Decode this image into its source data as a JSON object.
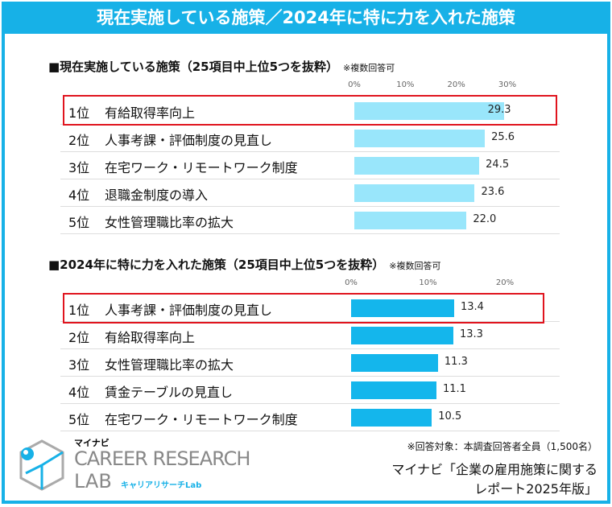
{
  "title": "現在実施している施策／2024年に特に力を入れた施策",
  "chart_data": [
    {
      "type": "bar",
      "title": "■現在実施している施策（25項目中上位5つを抜粋）",
      "note": "※複数回答可",
      "tick_labels": [
        "0%",
        "10%",
        "20%",
        "30%"
      ],
      "xlim": [
        0,
        30
      ],
      "unit": "%",
      "ranks": [
        "1位",
        "2位",
        "3位",
        "4位",
        "5位"
      ],
      "categories": [
        "有給取得率向上",
        "人事考課・評価制度の見直し",
        "在宅ワーク・リモートワーク制度",
        "退職金制度の導入",
        "女性管理職比率の拡大"
      ],
      "values": [
        29.3,
        25.6,
        24.5,
        23.6,
        22.0
      ],
      "value_labels": [
        "29.3",
        "25.6",
        "24.5",
        "23.6",
        "22.0"
      ],
      "color": "#99e6fb",
      "highlight_rank": 1
    },
    {
      "type": "bar",
      "title": "■2024年に特に力を入れた施策（25項目中上位5つを抜粋）",
      "note": "※複数回答可",
      "tick_labels": [
        "0%",
        "10%",
        "20%"
      ],
      "xlim": [
        0,
        20
      ],
      "unit": "%",
      "ranks": [
        "1位",
        "2位",
        "3位",
        "4位",
        "5位"
      ],
      "categories": [
        "人事考課・評価制度の見直し",
        "有給取得率向上",
        "女性管理職比率の拡大",
        "賃金テーブルの見直し",
        "在宅ワーク・リモートワーク制度"
      ],
      "values": [
        13.4,
        13.3,
        11.3,
        11.1,
        10.5
      ],
      "value_labels": [
        "13.4",
        "13.3",
        "11.3",
        "11.1",
        "10.5"
      ],
      "color": "#14b6ec",
      "highlight_rank": 1
    }
  ],
  "footer": {
    "respondents": "※回答対象：本調査回答者全員（1,500名）",
    "source_line1": "マイナビ「企業の雇用施策に関する",
    "source_line2": "レポート2025年版」"
  },
  "logo": {
    "brand": "マイナビ",
    "name1": "CAREER RESEARCH",
    "name2": "LAB",
    "sub": "キャリアリサーチLab"
  }
}
